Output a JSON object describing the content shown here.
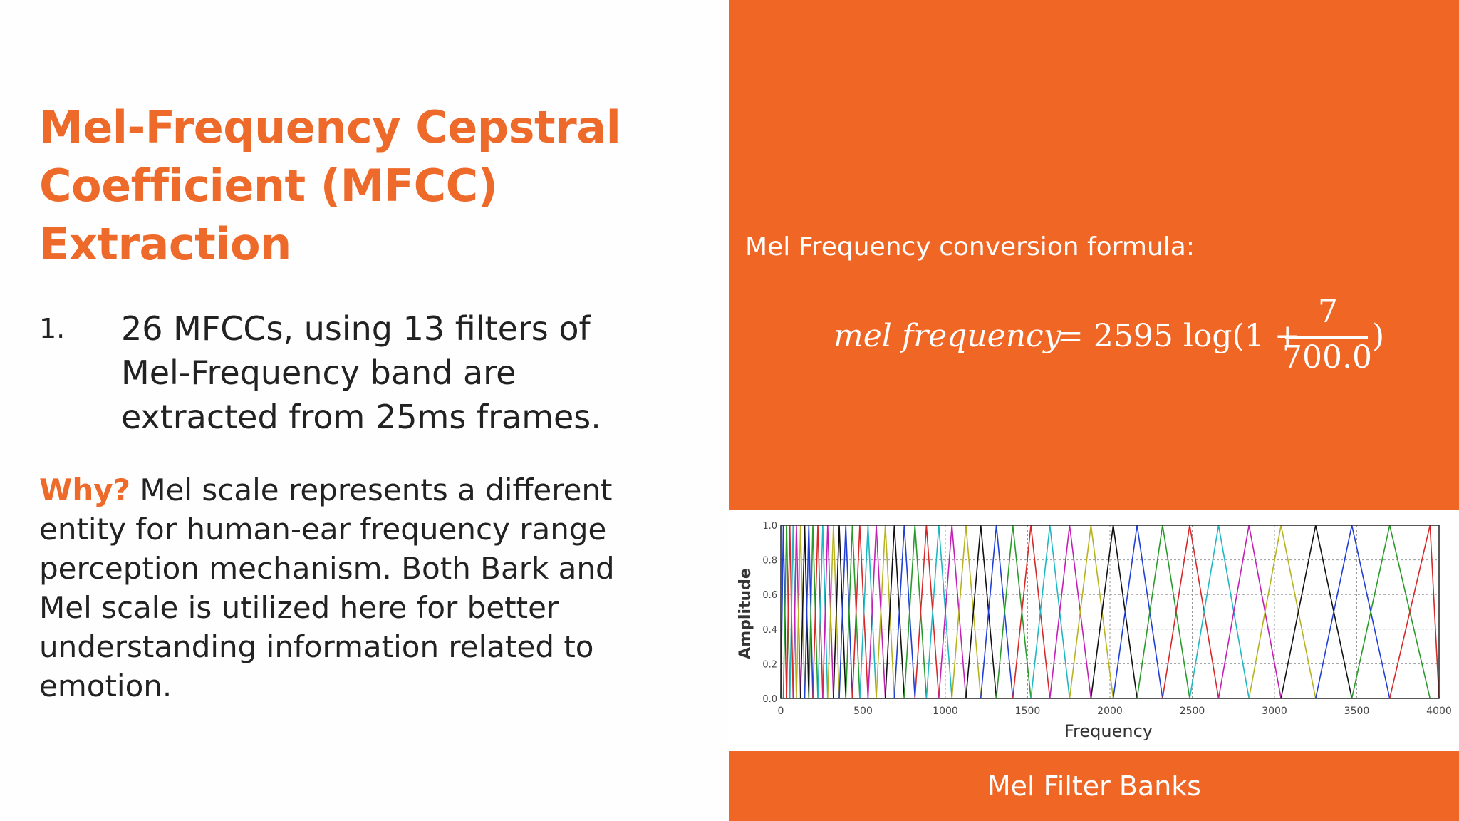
{
  "title": {
    "line1": "Mel-Frequency Cepstral",
    "line2": "Coefficient (MFCC)",
    "line3": "Extraction"
  },
  "item": {
    "number": "1.",
    "line1": "26 MFCCs, using 13 filters of",
    "line2": "Mel-Frequency band are",
    "line3": "extracted from 25ms frames."
  },
  "why": {
    "label": "Why?",
    "line1_rest": " Mel scale represents a different",
    "line2": "entity for human-ear frequency range",
    "line3": "perception mechanism. Both Bark and",
    "line4": "Mel scale is utilized here for better",
    "line5": "understanding information related to",
    "line6": "emotion."
  },
  "formula": {
    "label": "Mel Frequency conversion formula:",
    "lhs": "mel frequency",
    "rhs_prefix": "= 2595 log(1 +",
    "numerator": "7",
    "denominator": "700.0",
    "close": ")"
  },
  "caption": "Mel Filter Banks",
  "colors": {
    "accent": "#f06625",
    "title": "#ee6a2a",
    "text": "#222222"
  },
  "chart_data": {
    "type": "line",
    "description_of_series": "triangular mel filter bank",
    "xlabel": "Frequency",
    "ylabel": "Amplitude",
    "xlim": [
      0,
      4000
    ],
    "ylim": [
      0,
      1.0
    ],
    "xticks": [
      "0",
      "500",
      "1000",
      "1500",
      "2000",
      "2500",
      "3000",
      "3500",
      "4000"
    ],
    "yticks": [
      "0.0",
      "0.2",
      "0.4",
      "0.6",
      "0.8",
      "1.0"
    ],
    "grid": true,
    "peak_amplitude": 1.0,
    "filter_centers": [
      15,
      35,
      55,
      75,
      95,
      120,
      145,
      170,
      195,
      225,
      255,
      285,
      320,
      355,
      395,
      435,
      480,
      530,
      580,
      635,
      690,
      750,
      815,
      885,
      960,
      1040,
      1125,
      1215,
      1310,
      1410,
      1520,
      1635,
      1755,
      1885,
      2020,
      2165,
      2320,
      2485,
      2660,
      2845,
      3040,
      3250,
      3470,
      3700,
      3945
    ],
    "colors": [
      "#1f3fd6",
      "#2a9a2a",
      "#d62828",
      "#1fb7c2",
      "#c21fb7",
      "#b7b21f",
      "#111111"
    ]
  }
}
